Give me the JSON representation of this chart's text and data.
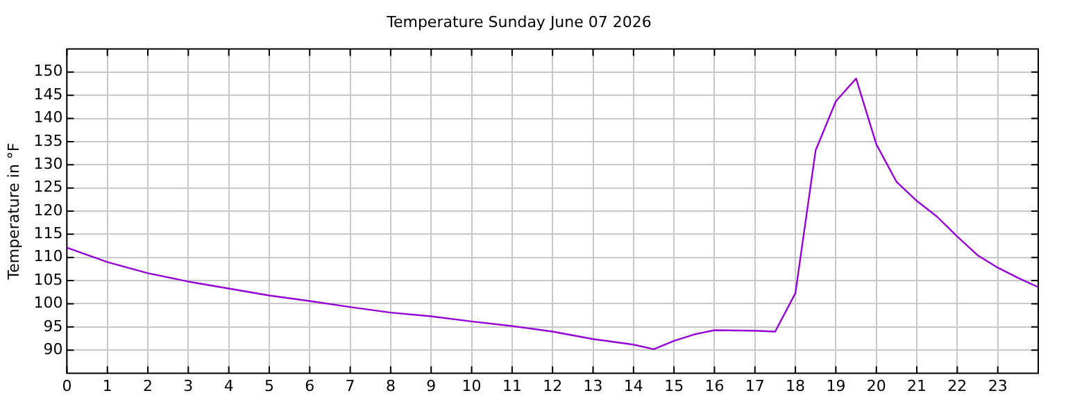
{
  "chart_data": {
    "type": "line",
    "title": "Temperature Sunday June 07 2026",
    "ylabel": "Temperature in °F",
    "x": [
      0,
      1,
      2,
      3,
      4,
      5,
      6,
      7,
      8,
      9,
      10,
      11,
      12,
      13,
      14,
      14.5,
      15,
      15.5,
      16,
      17,
      17.5,
      18,
      18.5,
      19,
      19.5,
      20,
      20.5,
      21,
      21.5,
      22,
      22.5,
      23,
      23.5,
      24
    ],
    "series": [
      {
        "color": "#9400d3",
        "values": [
          112.1,
          109.0,
          106.6,
          104.8,
          103.3,
          101.8,
          100.6,
          99.3,
          98.1,
          97.3,
          96.2,
          95.2,
          94.0,
          92.4,
          91.2,
          90.2,
          92.0,
          93.4,
          94.3,
          94.2,
          94.0,
          102.3,
          133.1,
          143.7,
          148.6,
          134.4,
          126.3,
          122.2,
          118.8,
          114.5,
          110.5,
          107.8,
          105.6,
          103.6
        ]
      }
    ],
    "xlim": [
      0,
      24
    ],
    "xticks": [
      0,
      1,
      2,
      3,
      4,
      5,
      6,
      7,
      8,
      9,
      10,
      11,
      12,
      13,
      14,
      15,
      16,
      17,
      18,
      19,
      20,
      21,
      22,
      23
    ],
    "ylim": [
      85,
      155
    ],
    "yticks": [
      90,
      95,
      100,
      105,
      110,
      115,
      120,
      125,
      130,
      135,
      140,
      145,
      150
    ],
    "grid": true,
    "legend": false,
    "marker": "none",
    "line_style": "solid"
  }
}
